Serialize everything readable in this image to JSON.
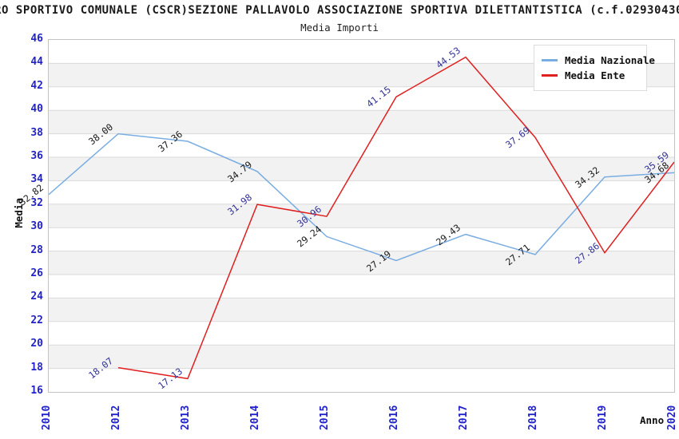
{
  "title": "RO SPORTIVO COMUNALE (CSCR)SEZIONE PALLAVOLO ASSOCIAZIONE SPORTIVA DILETTANTISTICA (c.f.02930430",
  "subtitle": "Media Importi",
  "chart_data": {
    "type": "line",
    "categories": [
      "2010",
      "2012",
      "2013",
      "2014",
      "2015",
      "2016",
      "2017",
      "2018",
      "2019",
      "2020"
    ],
    "series": [
      {
        "name": "Media Nazionale",
        "color": "#79ade2",
        "label_color": "#1a1a1a",
        "values": [
          32.82,
          38.0,
          37.36,
          34.79,
          29.24,
          27.19,
          29.43,
          27.71,
          34.32,
          34.68
        ],
        "labels": [
          "32.82",
          "38.00",
          "37.36",
          "34.79",
          "29.24",
          "27.19",
          "29.43",
          "27.71",
          "34.32",
          "34.68"
        ]
      },
      {
        "name": "Media Ente",
        "color": "#e01f1f",
        "label_color": "#333399",
        "values": [
          null,
          18.07,
          17.13,
          31.98,
          30.96,
          41.15,
          44.53,
          37.69,
          27.86,
          35.59
        ],
        "labels": [
          null,
          "18.07",
          "17.13",
          "31.98",
          "30.96",
          "41.15",
          "44.53",
          "37.69",
          "27.86",
          "35.59"
        ]
      }
    ],
    "xlabel": "Anno",
    "ylabel": "Media",
    "ylim": [
      16,
      46
    ],
    "ytick_step": 2,
    "grid": "alternating-bands",
    "legend_position": "top-right",
    "band_colors": [
      "#ffffff",
      "#f2f2f2"
    ],
    "gridline_color": "#dadada",
    "tick_label_color": "#2222cc"
  }
}
